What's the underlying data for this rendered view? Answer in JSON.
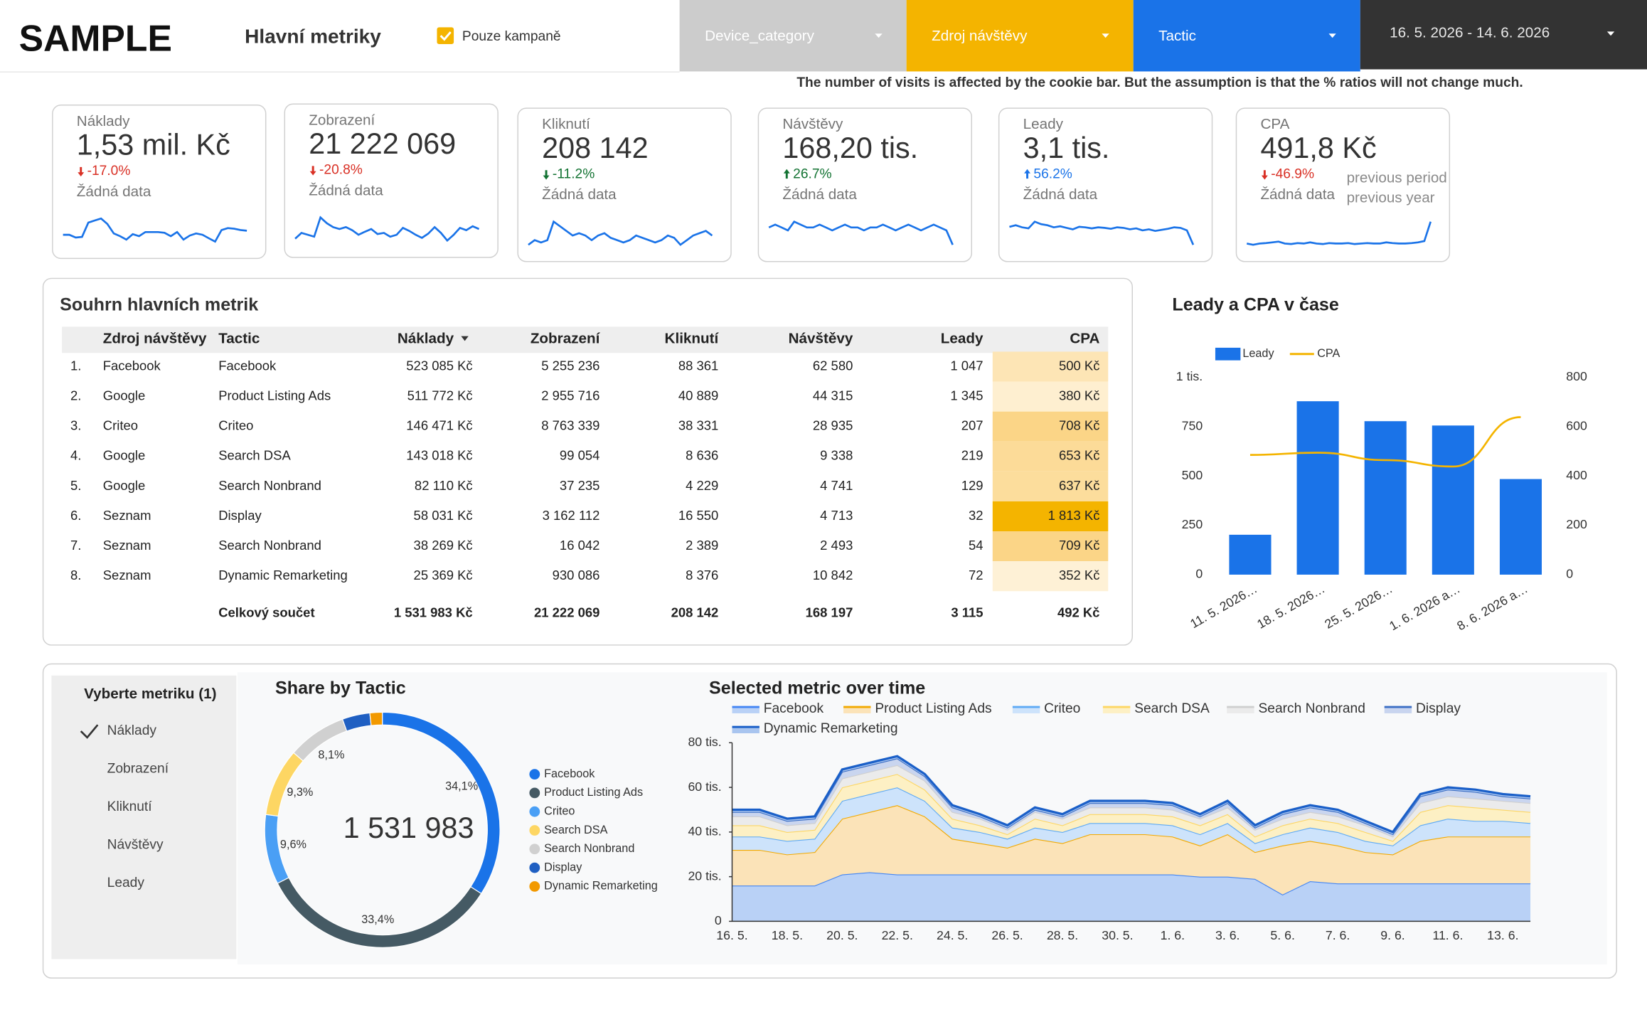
{
  "header": {
    "title": "SAMPLE",
    "subtitle": "Hlavní metriky",
    "checkbox_label": "Pouze kampaně",
    "filters": [
      "Device_category",
      "Zdroj návštěvy",
      "Tactic"
    ],
    "date_range": "16. 5. 2026 - 14. 6. 2026",
    "note": "The number of visits is affected by the cookie bar. But the assumption is that the % ratios will not change much."
  },
  "scorecards": [
    {
      "label": "Náklady",
      "value": "1,53 mil. Kč",
      "change": "-17.0%",
      "direction": "down",
      "change_color": "#d93025",
      "no_data": "Žádná data",
      "color": "#1a73e8",
      "trend": [
        50000,
        50000,
        46000,
        47000,
        68000,
        71000,
        74000,
        66000,
        52000,
        48000,
        43000,
        51000,
        48000,
        54000,
        54000,
        54000,
        53000,
        48000,
        54000,
        43000,
        49000,
        52000,
        50000,
        45000,
        40000,
        57000,
        60000,
        59000,
        57000,
        56000
      ]
    },
    {
      "label": "Zobrazení",
      "value": "21 222 069",
      "change": "-20.8%",
      "direction": "down",
      "change_color": "#d93025",
      "no_data": "Žádná data",
      "color": "#1a73e8",
      "trend": [
        690000,
        705000,
        700000,
        695000,
        745000,
        730000,
        720000,
        715000,
        720000,
        712000,
        700000,
        708000,
        715000,
        702000,
        705000,
        695000,
        700000,
        718000,
        710000,
        700000,
        692000,
        703000,
        720000,
        705000,
        685000,
        700000,
        718000,
        712000,
        722000,
        715000
      ]
    },
    {
      "label": "Kliknutí",
      "value": "208 142",
      "change": "-11.2%",
      "direction": "down",
      "change_color": "#137333",
      "no_data": "Žádná data",
      "color": "#1a73e8",
      "trend": [
        6800,
        6900,
        6850,
        6900,
        7300,
        7200,
        7100,
        7000,
        7050,
        7000,
        6900,
        7000,
        7050,
        6950,
        6900,
        6850,
        6900,
        7000,
        6950,
        6900,
        6850,
        6900,
        7000,
        6950,
        6800,
        6900,
        7000,
        7050,
        7100,
        7000
      ]
    },
    {
      "label": "Návštěvy",
      "value": "168,20 tis.",
      "change": "26.7%",
      "direction": "up",
      "change_color": "#137333",
      "no_data": "Žádná data",
      "color": "#1a73e8",
      "trend": [
        5600,
        5650,
        5600,
        5550,
        5700,
        5650,
        5600,
        5600,
        5650,
        5600,
        5550,
        5600,
        5650,
        5600,
        5600,
        5550,
        5600,
        5600,
        5650,
        5600,
        5550,
        5600,
        5650,
        5600,
        5550,
        5600,
        5650,
        5600,
        5550,
        5300
      ]
    },
    {
      "label": "Leady",
      "value": "3,1 tis.",
      "change": "56.2%",
      "direction": "up",
      "change_color": "#1a73e8",
      "no_data": "Žádná data",
      "color": "#1a73e8",
      "trend": [
        105,
        108,
        104,
        102,
        115,
        110,
        108,
        104,
        106,
        103,
        100,
        105,
        104,
        102,
        104,
        103,
        101,
        104,
        103,
        100,
        102,
        98,
        100,
        97,
        99,
        101,
        104,
        103,
        98,
        70
      ]
    },
    {
      "label": "CPA",
      "value": "491,8 Kč",
      "change": "-46.9%",
      "direction": "down",
      "change_color": "#d93025",
      "no_data": "Žádná data",
      "color": "#1a73e8",
      "comparison": [
        "previous period",
        "previous year"
      ],
      "trend": [
        470,
        465,
        470,
        472,
        475,
        478,
        470,
        468,
        472,
        470,
        475,
        470,
        468,
        472,
        470,
        470,
        472,
        468,
        470,
        472,
        470,
        470,
        475,
        472,
        470,
        470,
        472,
        475,
        480,
        560
      ]
    }
  ],
  "table": {
    "title": "Souhrn hlavních metrik",
    "columns": [
      "Zdroj návštěvy",
      "Tactic",
      "Náklady",
      "Zobrazení",
      "Kliknutí",
      "Návštěvy",
      "Leady",
      "CPA"
    ],
    "rows": [
      [
        "1.",
        "Facebook",
        "Facebook",
        "523 085 Kč",
        "5 255 236",
        "88 361",
        "62 580",
        "1 047",
        "500 Kč"
      ],
      [
        "2.",
        "Google",
        "Product Listing Ads",
        "511 772 Kč",
        "2 955 716",
        "40 889",
        "44 315",
        "1 345",
        "380 Kč"
      ],
      [
        "3.",
        "Criteo",
        "Criteo",
        "146 471 Kč",
        "8 763 339",
        "38 331",
        "28 935",
        "207",
        "708 Kč"
      ],
      [
        "4.",
        "Google",
        "Search DSA",
        "143 018 Kč",
        "99 054",
        "8 636",
        "9 338",
        "219",
        "653 Kč"
      ],
      [
        "5.",
        "Google",
        "Search Nonbrand",
        "82 110 Kč",
        "37 235",
        "4 229",
        "4 741",
        "129",
        "637 Kč"
      ],
      [
        "6.",
        "Seznam",
        "Display",
        "58 031 Kč",
        "3 162 112",
        "16 550",
        "4 713",
        "32",
        "1 813 Kč"
      ],
      [
        "7.",
        "Seznam",
        "Search Nonbrand",
        "38 269 Kč",
        "16 042",
        "2 389",
        "2 493",
        "54",
        "709 Kč"
      ],
      [
        "8.",
        "Seznam",
        "Dynamic Remarketing",
        "25 369 Kč",
        "930 086",
        "8 376",
        "10 842",
        "72",
        "352 Kč"
      ]
    ],
    "total": [
      "Celkový součet",
      "1 531 983 Kč",
      "21 222 069",
      "208 142",
      "168 197",
      "3 115",
      "492 Kč"
    ],
    "heat_colors": [
      "#fde5b5",
      "#feefd0",
      "#fbd587",
      "#fcdb98",
      "#fcdd9c",
      "#f4b400",
      "#fbd587",
      "#fef1d6"
    ]
  },
  "metric_selector": {
    "title": "Vyberte metriku (1)",
    "items": [
      "Náklady",
      "Zobrazení",
      "Kliknutí",
      "Návštěvy",
      "Leady"
    ],
    "selected": 0
  },
  "chart_data": [
    {
      "type": "combo",
      "title": "Leady a CPA v čase",
      "categories": [
        "11. 5. 2026…",
        "18. 5. 2026…",
        "25. 5. 2026…",
        "1. 6. 2026 a…",
        "8. 6. 2026 a…"
      ],
      "series": [
        {
          "name": "Leady",
          "type": "bar",
          "color": "#1a73e8",
          "values": [
            202,
            878,
            777,
            755,
            484
          ]
        },
        {
          "name": "CPA",
          "type": "line",
          "axis": "y2",
          "color": "#f4b400",
          "values": [
            485,
            494,
            464,
            438,
            638
          ]
        }
      ],
      "ylim": [
        0,
        1000
      ],
      "yticks": [
        0,
        250,
        500,
        750,
        {
          "value": 1000,
          "label": "1 tis."
        }
      ],
      "y2lim": [
        0,
        800
      ],
      "y2ticks": [
        0,
        200,
        400,
        600,
        800
      ],
      "legend": "top-left",
      "grid": false
    },
    {
      "type": "pie",
      "donut": true,
      "title": "Share by Tactic",
      "center_label": "1 531 983",
      "categories": [
        "Facebook",
        "Product Listing Ads",
        "Criteo",
        "Search DSA",
        "Search Nonbrand",
        "Display",
        "Dynamic Remarketing"
      ],
      "values": [
        34.1,
        33.4,
        9.6,
        9.3,
        8.1,
        3.8,
        1.7
      ],
      "value_labels": [
        "34,1%",
        "33,4%",
        "9,6%",
        "9,3%",
        "8,1%",
        null,
        null
      ],
      "colors": [
        "#1a73e8",
        "#455a64",
        "#4a9ff5",
        "#fdd663",
        "#d0d0d0",
        "#1f5fc2",
        "#f29900"
      ],
      "legend": "right"
    },
    {
      "type": "area",
      "stacked": true,
      "title": "Selected metric over time",
      "categories": [
        "16. 5.",
        null,
        "18. 5.",
        null,
        "20. 5.",
        null,
        "22. 5.",
        null,
        "24. 5.",
        null,
        "26. 5.",
        null,
        "28. 5.",
        null,
        "30. 5.",
        null,
        "1. 6.",
        null,
        "3. 6.",
        null,
        "5. 6.",
        null,
        "7. 6.",
        null,
        "9. 6.",
        null,
        "11. 6.",
        null,
        "13. 6.",
        null
      ],
      "series": [
        {
          "name": "Facebook",
          "color": "#4285f4",
          "fill": "#b9d1f6",
          "values": [
            16000,
            16000,
            16000,
            16000,
            21000,
            22000,
            21000,
            21000,
            21000,
            21000,
            21000,
            21000,
            21000,
            21000,
            21000,
            21000,
            21000,
            20000,
            20000,
            19000,
            12000,
            18000,
            17000,
            17000,
            17000,
            17000,
            17000,
            17000,
            17000,
            17000
          ]
        },
        {
          "name": "Product Listing Ads",
          "color": "#f2a900",
          "fill": "#fbe3b8",
          "values": [
            16000,
            16000,
            14000,
            15000,
            25000,
            27000,
            31000,
            26000,
            16000,
            14000,
            12000,
            16000,
            14000,
            18000,
            18000,
            18000,
            17000,
            14000,
            19000,
            12000,
            22000,
            18000,
            17000,
            14000,
            13000,
            19000,
            21000,
            21000,
            21000,
            21000
          ]
        },
        {
          "name": "Criteo",
          "color": "#5eaaf5",
          "fill": "#cde3fb",
          "values": [
            6000,
            6000,
            6000,
            6000,
            8000,
            8000,
            8000,
            7000,
            5000,
            5000,
            4000,
            5000,
            5000,
            5000,
            5000,
            5000,
            5000,
            5000,
            5000,
            4000,
            5000,
            6000,
            6000,
            5000,
            4000,
            7000,
            8000,
            7000,
            7000,
            6000
          ]
        },
        {
          "name": "Search DSA",
          "color": "#fdd663",
          "fill": "#fdf0c4",
          "values": [
            5000,
            5000,
            4000,
            4000,
            6000,
            6000,
            6000,
            5000,
            4000,
            3000,
            2000,
            4000,
            3000,
            4000,
            4000,
            4000,
            4000,
            4000,
            4000,
            3000,
            4000,
            4000,
            4000,
            4000,
            2000,
            6000,
            6000,
            6000,
            5000,
            5000
          ]
        },
        {
          "name": "Search Nonbrand",
          "color": "#cfcfcf",
          "fill": "#ebebeb",
          "values": [
            4000,
            4000,
            3000,
            3000,
            4000,
            4000,
            4000,
            4000,
            3000,
            3000,
            2000,
            3000,
            3000,
            3000,
            3000,
            3000,
            3000,
            3000,
            3000,
            3000,
            3000,
            3000,
            3000,
            3000,
            2000,
            4000,
            4000,
            4000,
            4000,
            4000
          ]
        },
        {
          "name": "Display",
          "color": "#3b6ec4",
          "fill": "#c9d5ef",
          "values": [
            2000,
            2000,
            2000,
            2000,
            3000,
            3000,
            3000,
            2000,
            2000,
            1000,
            1000,
            1000,
            1000,
            2000,
            2000,
            2000,
            2000,
            1000,
            2000,
            1000,
            2000,
            2000,
            2000,
            1000,
            1000,
            3000,
            3000,
            3000,
            2000,
            2000
          ]
        },
        {
          "name": "Dynamic Remarketing",
          "color": "#1a5fc8",
          "fill": "#a9c5ef",
          "values": [
            1000,
            1000,
            1000,
            1000,
            1000,
            1000,
            1000,
            1000,
            1000,
            1000,
            1000,
            1000,
            1000,
            1000,
            1000,
            1000,
            1000,
            1000,
            1000,
            1000,
            1000,
            1000,
            1000,
            1000,
            1000,
            1000,
            1000,
            1000,
            1000,
            1000
          ]
        }
      ],
      "ylim": [
        0,
        80000
      ],
      "yticks": [
        0,
        {
          "value": 20000,
          "label": "20 tis."
        },
        {
          "value": 40000,
          "label": "40 tis."
        },
        {
          "value": 60000,
          "label": "60 tis."
        },
        {
          "value": 80000,
          "label": "80 tis."
        }
      ],
      "legend": "top",
      "grid": false
    }
  ]
}
